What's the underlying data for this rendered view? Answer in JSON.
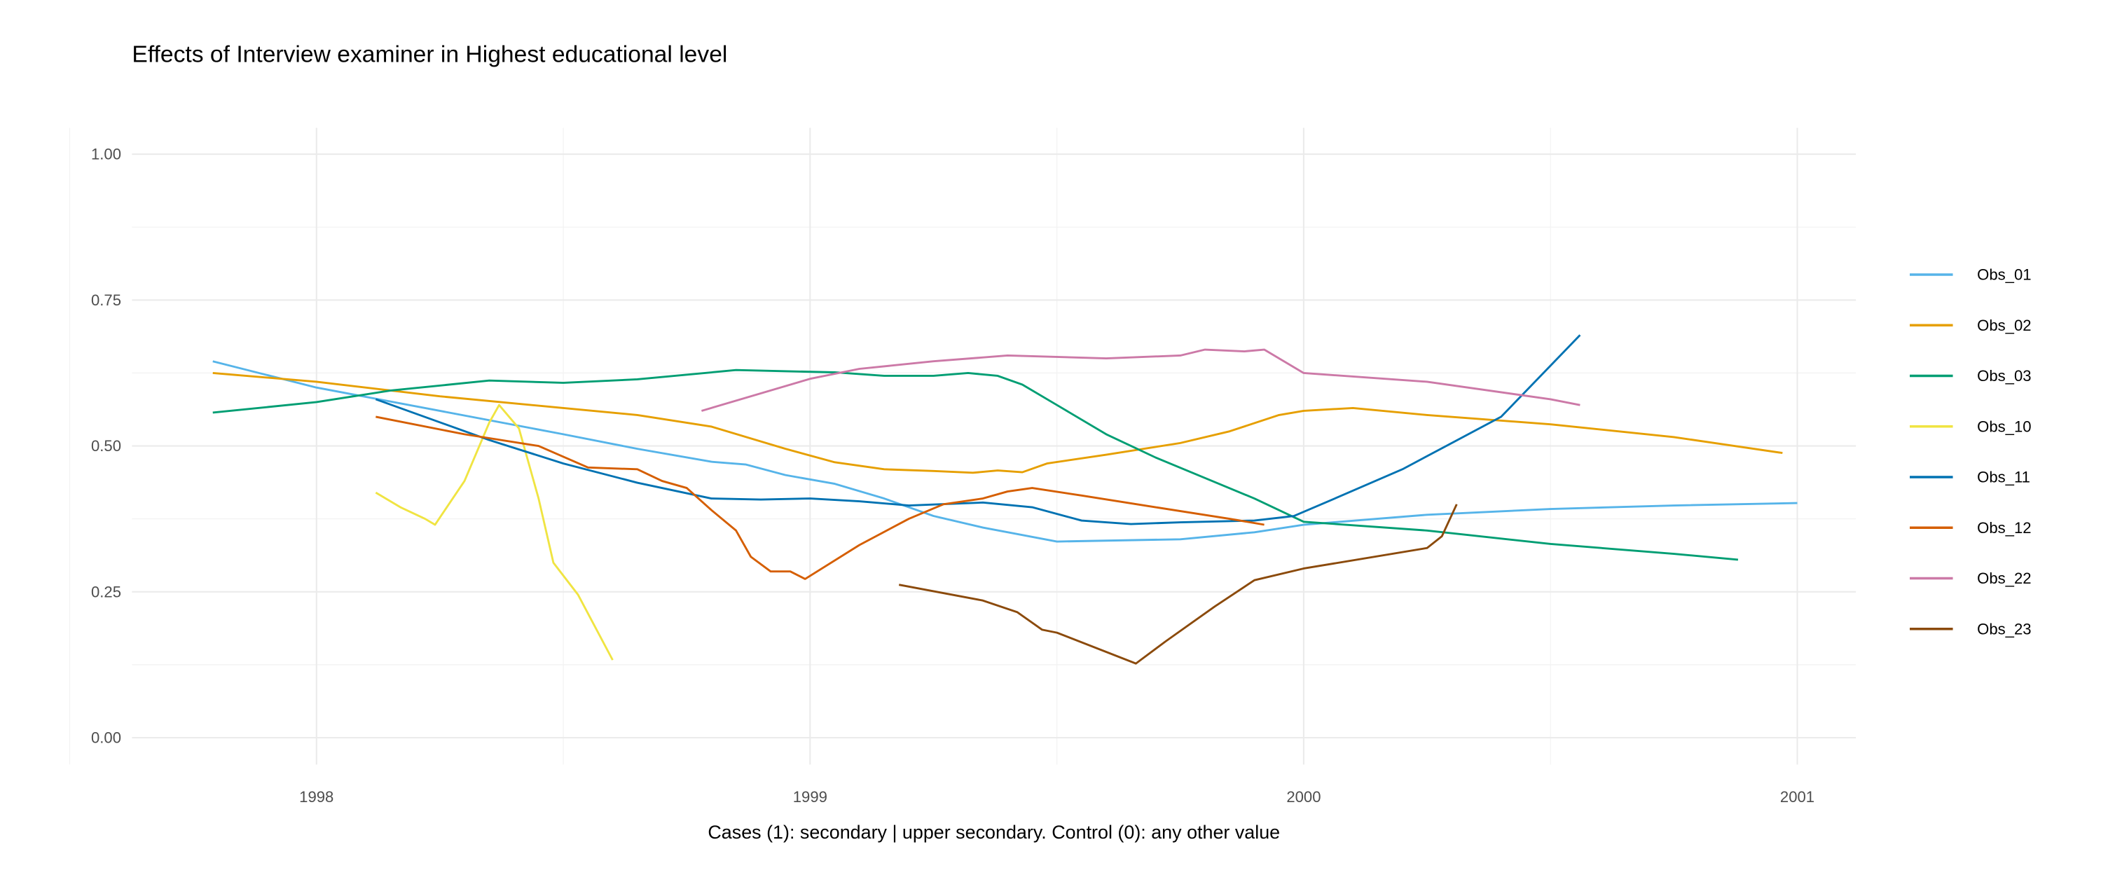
{
  "chart_data": {
    "type": "line",
    "title": "Effects of Interview examiner in Highest educational level",
    "xlabel": "Cases (1): secondary | upper secondary. Control (0): any other value",
    "ylabel": "",
    "xlim": [
      1997.65,
      2001.1
    ],
    "ylim": [
      -0.05,
      1.04
    ],
    "x_ticks": [
      1998,
      1999,
      2000,
      2001
    ],
    "x_tick_labels": [
      "1998",
      "1999",
      "2000",
      "2001"
    ],
    "y_ticks": [
      0,
      0.25,
      0.5,
      0.75,
      1
    ],
    "y_tick_labels": [
      "0.00",
      "0.25",
      "0.50",
      "0.75",
      "1.00"
    ],
    "grid": true,
    "legend_position": "right",
    "series": [
      {
        "name": "Obs_01",
        "color": "#56B4E9",
        "points": [
          [
            1997.79,
            0.645
          ],
          [
            1998,
            0.6
          ],
          [
            1998.25,
            0.56
          ],
          [
            1998.5,
            0.52
          ],
          [
            1998.65,
            0.495
          ],
          [
            1998.8,
            0.473
          ],
          [
            1998.87,
            0.468
          ],
          [
            1998.95,
            0.45
          ],
          [
            1999.05,
            0.435
          ],
          [
            1999.15,
            0.41
          ],
          [
            1999.25,
            0.38
          ],
          [
            1999.35,
            0.36
          ],
          [
            1999.5,
            0.336
          ],
          [
            1999.75,
            0.34
          ],
          [
            1999.9,
            0.352
          ],
          [
            2000,
            0.365
          ],
          [
            2000.25,
            0.382
          ],
          [
            2000.5,
            0.392
          ],
          [
            2000.75,
            0.398
          ],
          [
            2001,
            0.402
          ]
        ]
      },
      {
        "name": "Obs_02",
        "color": "#E69F00",
        "points": [
          [
            1997.79,
            0.625
          ],
          [
            1998,
            0.61
          ],
          [
            1998.25,
            0.585
          ],
          [
            1998.5,
            0.565
          ],
          [
            1998.65,
            0.553
          ],
          [
            1998.8,
            0.533
          ],
          [
            1998.95,
            0.495
          ],
          [
            1999.05,
            0.472
          ],
          [
            1999.15,
            0.46
          ],
          [
            1999.25,
            0.457
          ],
          [
            1999.33,
            0.454
          ],
          [
            1999.38,
            0.458
          ],
          [
            1999.43,
            0.455
          ],
          [
            1999.48,
            0.47
          ],
          [
            1999.6,
            0.485
          ],
          [
            1999.75,
            0.505
          ],
          [
            1999.85,
            0.525
          ],
          [
            1999.95,
            0.553
          ],
          [
            2000,
            0.56
          ],
          [
            2000.1,
            0.565
          ],
          [
            2000.25,
            0.553
          ],
          [
            2000.5,
            0.537
          ],
          [
            2000.75,
            0.515
          ],
          [
            2000.97,
            0.488
          ]
        ]
      },
      {
        "name": "Obs_03",
        "color": "#009E73",
        "points": [
          [
            1997.79,
            0.557
          ],
          [
            1998,
            0.575
          ],
          [
            1998.15,
            0.595
          ],
          [
            1998.35,
            0.612
          ],
          [
            1998.5,
            0.608
          ],
          [
            1998.65,
            0.614
          ],
          [
            1998.85,
            0.63
          ],
          [
            1999.05,
            0.626
          ],
          [
            1999.15,
            0.62
          ],
          [
            1999.25,
            0.62
          ],
          [
            1999.32,
            0.625
          ],
          [
            1999.38,
            0.62
          ],
          [
            1999.43,
            0.605
          ],
          [
            1999.5,
            0.57
          ],
          [
            1999.6,
            0.52
          ],
          [
            1999.7,
            0.48
          ],
          [
            1999.8,
            0.445
          ],
          [
            1999.9,
            0.41
          ],
          [
            2000,
            0.37
          ],
          [
            2000.25,
            0.355
          ],
          [
            2000.5,
            0.332
          ],
          [
            2000.75,
            0.315
          ],
          [
            2000.88,
            0.305
          ]
        ]
      },
      {
        "name": "Obs_10",
        "color": "#F0E442",
        "points": [
          [
            1998.12,
            0.42
          ],
          [
            1998.17,
            0.395
          ],
          [
            1998.22,
            0.375
          ],
          [
            1998.24,
            0.365
          ],
          [
            1998.3,
            0.44
          ],
          [
            1998.35,
            0.54
          ],
          [
            1998.37,
            0.57
          ],
          [
            1998.41,
            0.53
          ],
          [
            1998.45,
            0.41
          ],
          [
            1998.48,
            0.3
          ],
          [
            1998.53,
            0.245
          ],
          [
            1998.6,
            0.133
          ]
        ]
      },
      {
        "name": "Obs_11",
        "color": "#0072B2",
        "points": [
          [
            1998.12,
            0.58
          ],
          [
            1998.35,
            0.51
          ],
          [
            1998.5,
            0.47
          ],
          [
            1998.65,
            0.437
          ],
          [
            1998.8,
            0.41
          ],
          [
            1998.9,
            0.408
          ],
          [
            1999,
            0.41
          ],
          [
            1999.1,
            0.405
          ],
          [
            1999.2,
            0.398
          ],
          [
            1999.35,
            0.403
          ],
          [
            1999.45,
            0.395
          ],
          [
            1999.55,
            0.372
          ],
          [
            1999.65,
            0.366
          ],
          [
            1999.75,
            0.369
          ],
          [
            1999.9,
            0.372
          ],
          [
            1999.98,
            0.38
          ],
          [
            2000.05,
            0.405
          ],
          [
            2000.2,
            0.46
          ],
          [
            2000.4,
            0.55
          ],
          [
            2000.56,
            0.69
          ]
        ]
      },
      {
        "name": "Obs_12",
        "color": "#D55E00",
        "points": [
          [
            1998.12,
            0.55
          ],
          [
            1998.3,
            0.52
          ],
          [
            1998.45,
            0.5
          ],
          [
            1998.55,
            0.463
          ],
          [
            1998.65,
            0.46
          ],
          [
            1998.7,
            0.44
          ],
          [
            1998.75,
            0.428
          ],
          [
            1998.8,
            0.39
          ],
          [
            1998.85,
            0.355
          ],
          [
            1998.88,
            0.31
          ],
          [
            1998.92,
            0.285
          ],
          [
            1998.96,
            0.285
          ],
          [
            1998.99,
            0.272
          ],
          [
            1999.1,
            0.33
          ],
          [
            1999.2,
            0.375
          ],
          [
            1999.27,
            0.4
          ],
          [
            1999.35,
            0.41
          ],
          [
            1999.4,
            0.422
          ],
          [
            1999.45,
            0.428
          ],
          [
            1999.55,
            0.415
          ],
          [
            1999.7,
            0.395
          ],
          [
            1999.85,
            0.375
          ],
          [
            1999.92,
            0.365
          ]
        ]
      },
      {
        "name": "Obs_22",
        "color": "#CC79A7",
        "points": [
          [
            1998.78,
            0.56
          ],
          [
            1999,
            0.615
          ],
          [
            1999.1,
            0.632
          ],
          [
            1999.25,
            0.645
          ],
          [
            1999.4,
            0.655
          ],
          [
            1999.6,
            0.65
          ],
          [
            1999.75,
            0.655
          ],
          [
            1999.8,
            0.665
          ],
          [
            1999.88,
            0.662
          ],
          [
            1999.92,
            0.665
          ],
          [
            2000,
            0.625
          ],
          [
            2000.25,
            0.61
          ],
          [
            2000.5,
            0.58
          ],
          [
            2000.56,
            0.57
          ]
        ]
      },
      {
        "name": "Obs_23",
        "color": "#8B4A0B",
        "points": [
          [
            1999.18,
            0.262
          ],
          [
            1999.35,
            0.235
          ],
          [
            1999.42,
            0.215
          ],
          [
            1999.47,
            0.185
          ],
          [
            1999.5,
            0.18
          ],
          [
            1999.66,
            0.127
          ],
          [
            1999.72,
            0.165
          ],
          [
            1999.82,
            0.225
          ],
          [
            1999.9,
            0.27
          ],
          [
            2000,
            0.29
          ],
          [
            2000.25,
            0.325
          ],
          [
            2000.28,
            0.345
          ],
          [
            2000.31,
            0.4
          ]
        ]
      }
    ]
  }
}
